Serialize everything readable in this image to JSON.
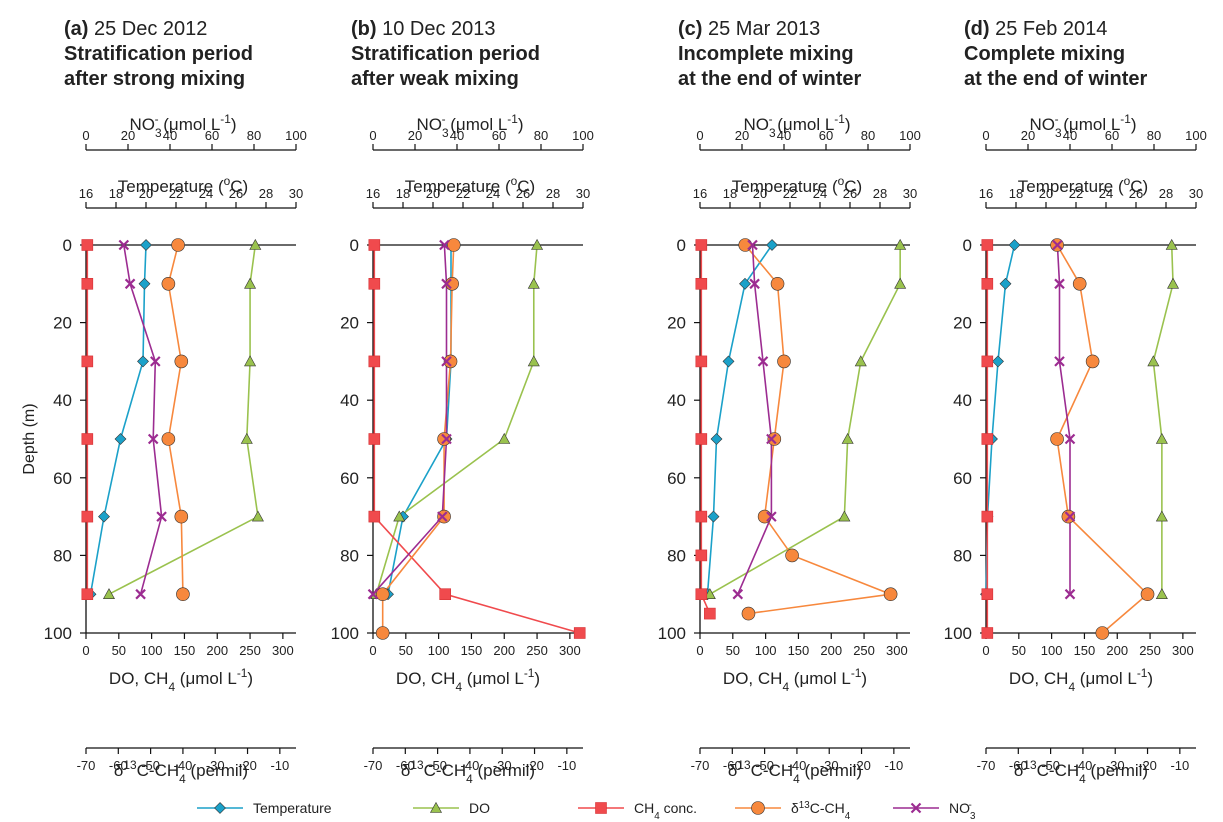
{
  "chart_data": [
    {
      "type": "line",
      "panel_letter": "(a)",
      "date": "25 Dec 2012",
      "title_line1": "Stratification period",
      "title_line2": "after strong mixing",
      "series": [
        {
          "name": "Temperature",
          "axis": "temp",
          "color": "#1ba1c9",
          "marker": "diamond",
          "points": [
            [
              0,
              20.0
            ],
            [
              10,
              19.9
            ],
            [
              30,
              19.8
            ],
            [
              50,
              18.3
            ],
            [
              70,
              17.2
            ],
            [
              90,
              16.3
            ]
          ]
        },
        {
          "name": "DO",
          "axis": "do",
          "color": "#9ac24e",
          "marker": "triangle",
          "points": [
            [
              0,
              258
            ],
            [
              10,
              250
            ],
            [
              30,
              250
            ],
            [
              50,
              245
            ],
            [
              70,
              262
            ],
            [
              90,
              35
            ]
          ]
        },
        {
          "name": "CH4 conc.",
          "axis": "do",
          "color": "#f04a4d",
          "marker": "square",
          "points": [
            [
              0,
              2
            ],
            [
              10,
              2
            ],
            [
              30,
              2
            ],
            [
              50,
              2
            ],
            [
              70,
              2
            ],
            [
              90,
              2
            ]
          ]
        },
        {
          "name": "δ13C-CH4",
          "axis": "d13c",
          "color": "#f7883d",
          "marker": "circle",
          "points": [
            [
              0,
              -41.5
            ],
            [
              10,
              -44.5
            ],
            [
              30,
              -40.5
            ],
            [
              50,
              -44.5
            ],
            [
              70,
              -40.5
            ],
            [
              90,
              -40.0
            ]
          ]
        },
        {
          "name": "NO3-",
          "axis": "no3",
          "color": "#9c2c91",
          "marker": "x",
          "points": [
            [
              0,
              18
            ],
            [
              10,
              21
            ],
            [
              30,
              33
            ],
            [
              50,
              32
            ],
            [
              70,
              36
            ],
            [
              90,
              26
            ]
          ]
        }
      ]
    },
    {
      "type": "line",
      "panel_letter": "(b)",
      "date": "10 Dec 2013",
      "title_line1": "Stratification period",
      "title_line2": "after weak mixing",
      "series": [
        {
          "name": "Temperature",
          "axis": "temp",
          "color": "#1ba1c9",
          "marker": "diamond",
          "points": [
            [
              0,
              21.2
            ],
            [
              10,
              21.2
            ],
            [
              30,
              21.2
            ],
            [
              50,
              20.9
            ],
            [
              70,
              18.0
            ],
            [
              90,
              17.0
            ]
          ]
        },
        {
          "name": "DO",
          "axis": "do",
          "color": "#9ac24e",
          "marker": "triangle",
          "points": [
            [
              0,
              250
            ],
            [
              10,
              245
            ],
            [
              30,
              245
            ],
            [
              50,
              200
            ],
            [
              70,
              40
            ],
            [
              90,
              5
            ]
          ]
        },
        {
          "name": "CH4 conc.",
          "axis": "do",
          "color": "#f04a4d",
          "marker": "square",
          "points": [
            [
              0,
              2
            ],
            [
              10,
              2
            ],
            [
              30,
              2
            ],
            [
              50,
              2
            ],
            [
              70,
              2
            ],
            [
              90,
              110
            ],
            [
              100,
              315
            ]
          ]
        },
        {
          "name": "δ13C-CH4",
          "axis": "d13c",
          "color": "#f7883d",
          "marker": "circle",
          "points": [
            [
              0,
              -45.0
            ],
            [
              10,
              -45.5
            ],
            [
              30,
              -46.0
            ],
            [
              50,
              -48.0
            ],
            [
              70,
              -48.0
            ],
            [
              90,
              -67.0
            ],
            [
              100,
              -67.0
            ]
          ]
        },
        {
          "name": "NO3-",
          "axis": "no3",
          "color": "#9c2c91",
          "marker": "x",
          "points": [
            [
              0,
              34
            ],
            [
              10,
              35
            ],
            [
              30,
              35
            ],
            [
              50,
              35
            ],
            [
              70,
              33
            ],
            [
              90,
              0
            ]
          ]
        }
      ]
    },
    {
      "type": "line",
      "panel_letter": "(c)",
      "date": "25 Mar 2013",
      "title_line1": "Incomplete mixing",
      "title_line2": "at the end of winter",
      "series": [
        {
          "name": "Temperature",
          "axis": "temp",
          "color": "#1ba1c9",
          "marker": "diamond",
          "points": [
            [
              0,
              20.8
            ],
            [
              10,
              19.0
            ],
            [
              30,
              17.9
            ],
            [
              50,
              17.1
            ],
            [
              70,
              16.9
            ],
            [
              90,
              16.5
            ]
          ]
        },
        {
          "name": "DO",
          "axis": "do",
          "color": "#9ac24e",
          "marker": "triangle",
          "points": [
            [
              0,
              305
            ],
            [
              10,
              305
            ],
            [
              30,
              245
            ],
            [
              50,
              225
            ],
            [
              70,
              220
            ],
            [
              90,
              15
            ]
          ]
        },
        {
          "name": "CH4 conc.",
          "axis": "do",
          "color": "#f04a4d",
          "marker": "square",
          "points": [
            [
              0,
              2
            ],
            [
              10,
              2
            ],
            [
              30,
              2
            ],
            [
              50,
              2
            ],
            [
              70,
              2
            ],
            [
              80,
              2
            ],
            [
              90,
              2
            ],
            [
              95,
              15
            ]
          ]
        },
        {
          "name": "δ13C-CH4",
          "axis": "d13c",
          "color": "#f7883d",
          "marker": "circle",
          "points": [
            [
              0,
              -56.0
            ],
            [
              10,
              -46.0
            ],
            [
              30,
              -44.0
            ],
            [
              50,
              -47.0
            ],
            [
              70,
              -50.0
            ],
            [
              80,
              -41.5
            ],
            [
              90,
              -11.0
            ],
            [
              95,
              -55.0
            ]
          ]
        },
        {
          "name": "NO3-",
          "axis": "no3",
          "color": "#9c2c91",
          "marker": "x",
          "points": [
            [
              0,
              25
            ],
            [
              10,
              26
            ],
            [
              30,
              30
            ],
            [
              50,
              34
            ],
            [
              70,
              34
            ],
            [
              90,
              18
            ]
          ]
        }
      ]
    },
    {
      "type": "line",
      "panel_letter": "(d)",
      "date": "25 Feb 2014",
      "title_line1": "Complete mixing",
      "title_line2": "at the end of winter",
      "series": [
        {
          "name": "Temperature",
          "axis": "temp",
          "color": "#1ba1c9",
          "marker": "diamond",
          "points": [
            [
              0,
              17.9
            ],
            [
              10,
              17.3
            ],
            [
              30,
              16.8
            ],
            [
              50,
              16.4
            ],
            [
              70,
              16.1
            ],
            [
              90,
              16.0
            ]
          ]
        },
        {
          "name": "DO",
          "axis": "do",
          "color": "#9ac24e",
          "marker": "triangle",
          "points": [
            [
              0,
              283
            ],
            [
              10,
              285
            ],
            [
              30,
              255
            ],
            [
              50,
              268
            ],
            [
              70,
              268
            ],
            [
              90,
              268
            ]
          ]
        },
        {
          "name": "CH4 conc.",
          "axis": "do",
          "color": "#f04a4d",
          "marker": "square",
          "points": [
            [
              0,
              2
            ],
            [
              10,
              2
            ],
            [
              30,
              2
            ],
            [
              50,
              2
            ],
            [
              70,
              2
            ],
            [
              90,
              2
            ],
            [
              100,
              2
            ]
          ]
        },
        {
          "name": "δ13C-CH4",
          "axis": "d13c",
          "color": "#f7883d",
          "marker": "circle",
          "points": [
            [
              0,
              -48.0
            ],
            [
              10,
              -41.0
            ],
            [
              30,
              -37.0
            ],
            [
              50,
              -48.0
            ],
            [
              70,
              -44.5
            ],
            [
              90,
              -20.0
            ],
            [
              100,
              -34.0
            ]
          ]
        },
        {
          "name": "NO3-",
          "axis": "no3",
          "color": "#9c2c91",
          "marker": "x",
          "points": [
            [
              0,
              34
            ],
            [
              10,
              35
            ],
            [
              30,
              35
            ],
            [
              50,
              40
            ],
            [
              70,
              40
            ],
            [
              90,
              40
            ]
          ]
        }
      ]
    }
  ],
  "axes": {
    "no3_label": "NO3- (μmol L-1)",
    "no3_ticks": [
      0,
      20,
      40,
      60,
      80,
      100
    ],
    "no3_range": [
      0,
      100
    ],
    "temp_label": "Temperature (oC)",
    "temp_ticks": [
      16,
      18,
      20,
      22,
      24,
      26,
      28,
      30
    ],
    "temp_range": [
      16,
      30
    ],
    "do_label": "DO, CH4 (μmol L-1)",
    "do_ticks": [
      0,
      50,
      100,
      150,
      200,
      250,
      300
    ],
    "do_range": [
      0,
      320
    ],
    "d13c_label": "δ13C-CH4 (permil)",
    "d13c_ticks": [
      -70,
      -60,
      -50,
      -40,
      -30,
      -20,
      -10
    ],
    "d13c_range": [
      -70,
      -5
    ],
    "depth_label": "Depth (m)",
    "depth_ticks": [
      0,
      20,
      40,
      60,
      80,
      100
    ],
    "depth_range": [
      0,
      100
    ]
  },
  "legend": {
    "position": "bottom",
    "items": [
      {
        "label": "Temperature",
        "color": "#1ba1c9",
        "marker": "diamond"
      },
      {
        "label": "DO",
        "color": "#9ac24e",
        "marker": "triangle"
      },
      {
        "label": "CH4 conc.",
        "color": "#f04a4d",
        "marker": "square"
      },
      {
        "label": "δ13C-CH4",
        "color": "#f7883d",
        "marker": "circle"
      },
      {
        "label": "NO3-",
        "color": "#9c2c91",
        "marker": "x"
      }
    ]
  }
}
